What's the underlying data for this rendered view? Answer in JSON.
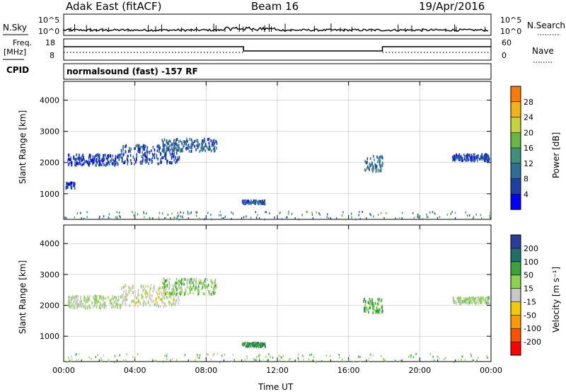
{
  "header": {
    "station": "Adak East (fitACF)",
    "beam": "Beam 16",
    "date": "19/Apr/2016"
  },
  "strip1": {
    "left_label": "N.Sky",
    "right_label": "N.Search",
    "left_ticks": [
      "10^5",
      "10^0"
    ],
    "right_ticks": [
      "10^5",
      "10^0"
    ]
  },
  "strip2": {
    "left_label_line1": "Freq.",
    "left_label_line2": "[MHz]",
    "right_label": "Nave",
    "left_ticks": [
      "18",
      "8"
    ],
    "right_ticks": [
      "60",
      "0"
    ]
  },
  "cpid": {
    "label": "CPID",
    "text": "normalsound (fast) -157 RF"
  },
  "colors": {
    "frame": "#000000",
    "grid": "#b4b4b4",
    "power_scale": [
      "#0000ff",
      "#1f3fa8",
      "#2e6f9a",
      "#3f8f7a",
      "#66b845",
      "#c8d33c",
      "#f3b317",
      "#ff7a00",
      "#ff3b00",
      "#e60000"
    ],
    "velocity_scale": [
      "#ff0000",
      "#ff5000",
      "#ff9a00",
      "#f2cc00",
      "#c8c8c8",
      "#8bd44c",
      "#3aa43a",
      "#1f6f6a",
      "#2a3f9a",
      "#1b2fc9"
    ]
  },
  "power_colorbar": {
    "label": "Power [dB]",
    "ticks": [
      "4",
      "8",
      "12",
      "16",
      "20",
      "24",
      "28"
    ]
  },
  "velocity_colorbar": {
    "label": "Velocity [m s⁻¹]",
    "ticks": [
      "200",
      "100",
      "50",
      "15",
      "-15",
      "-50",
      "-100",
      "-200"
    ]
  },
  "chart_data": [
    {
      "type": "heatmap",
      "title": "",
      "panel": "power",
      "ylabel": "Slant Range [km]",
      "xlabel": "",
      "x_ticks": [
        "00:00",
        "04:00",
        "08:00",
        "12:00",
        "16:00",
        "20:00",
        "00:00"
      ],
      "y_ticks": [
        "1000",
        "2000",
        "3000",
        "4000"
      ],
      "ylim": [
        180,
        4600
      ],
      "xlim_hours": [
        0,
        24
      ],
      "scatter_regions": [
        {
          "t_start": 0.2,
          "t_end": 3.2,
          "r_start": 1950,
          "r_end": 2300,
          "value": 3
        },
        {
          "t_start": 3.2,
          "t_end": 6.5,
          "r_start": 2000,
          "r_end": 2600,
          "value": 4
        },
        {
          "t_start": 5.5,
          "t_end": 8.6,
          "r_start": 2400,
          "r_end": 2800,
          "value": 5
        },
        {
          "t_start": 0.1,
          "t_end": 0.6,
          "r_start": 1200,
          "r_end": 1400,
          "value": 3
        },
        {
          "t_start": 10.0,
          "t_end": 11.3,
          "r_start": 720,
          "r_end": 820,
          "value": 4
        },
        {
          "t_start": 16.8,
          "t_end": 17.9,
          "r_start": 1750,
          "r_end": 2250,
          "value": 6
        },
        {
          "t_start": 21.8,
          "t_end": 23.9,
          "r_start": 2100,
          "r_end": 2300,
          "value": 3
        }
      ]
    },
    {
      "type": "heatmap",
      "title": "",
      "panel": "velocity",
      "ylabel": "Slant Range [km]",
      "xlabel": "Time UT",
      "x_ticks": [
        "00:00",
        "04:00",
        "08:00",
        "12:00",
        "16:00",
        "20:00",
        "00:00"
      ],
      "y_ticks": [
        "1000",
        "2000",
        "3000",
        "4000"
      ],
      "ylim": [
        180,
        4600
      ],
      "xlim_hours": [
        0,
        24
      ],
      "scatter_regions": [
        {
          "t_start": 0.2,
          "t_end": 3.2,
          "r_start": 1950,
          "r_end": 2350,
          "value": -15
        },
        {
          "t_start": 3.2,
          "t_end": 6.5,
          "r_start": 2000,
          "r_end": 2700,
          "value": -30
        },
        {
          "t_start": 5.5,
          "t_end": 8.6,
          "r_start": 2400,
          "r_end": 2900,
          "value": 0
        },
        {
          "t_start": 10.0,
          "t_end": 11.3,
          "r_start": 700,
          "r_end": 830,
          "value": 40
        },
        {
          "t_start": 16.8,
          "t_end": 17.9,
          "r_start": 1800,
          "r_end": 2250,
          "value": 30
        },
        {
          "t_start": 21.8,
          "t_end": 23.9,
          "r_start": 2100,
          "r_end": 2300,
          "value": -10
        }
      ]
    }
  ]
}
